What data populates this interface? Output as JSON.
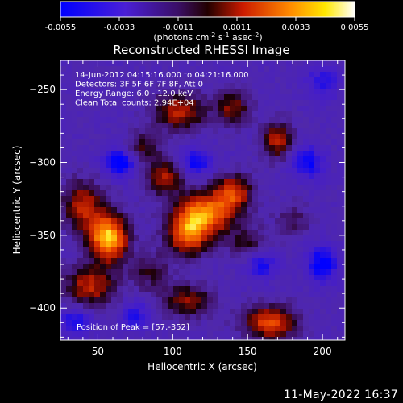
{
  "chart_data": {
    "type": "heatmap",
    "title": "Reconstructed RHESSI Image",
    "xlabel": "Heliocentric X (arcsec)",
    "ylabel": "Heliocentric Y (arcsec)",
    "xlim": [
      25,
      215
    ],
    "ylim": [
      -422,
      -230
    ],
    "xticks": [
      50,
      100,
      150,
      200
    ],
    "yticks": [
      -250,
      -300,
      -350,
      -400
    ],
    "colorbar": {
      "range": [
        -0.0055,
        0.0055
      ],
      "ticks": [
        "-0.0055",
        "-0.0033",
        "-0.0011",
        "0.0011",
        "0.0033",
        "0.0055"
      ],
      "unit_label_parts": [
        "(photons cm",
        "-2",
        " s",
        "-1",
        " asec",
        "-2",
        ")"
      ],
      "colormap": "blue-purple-red-orange-yellow-white"
    },
    "annotations": [
      "14-Jun-2012 04:15:16.000 to 04:21:16.000",
      "Detectors: 3F 5F 6F 7F 8F, Att 0",
      "Energy Range: 6.0 - 12.0 keV",
      "Clean     Total counts: 2.94E+04"
    ],
    "peak_label": "Position of Peak = [57,-352]",
    "peak": {
      "x": 57,
      "y": -352
    },
    "blobs": [
      {
        "x": 57,
        "y": -352,
        "amp": 1.0,
        "sx": 9,
        "sy": 11
      },
      {
        "x": 40,
        "y": -330,
        "amp": 0.55,
        "sx": 10,
        "sy": 12
      },
      {
        "x": 45,
        "y": -385,
        "amp": 0.55,
        "sx": 12,
        "sy": 10
      },
      {
        "x": 122,
        "y": -335,
        "amp": 0.8,
        "sx": 14,
        "sy": 10
      },
      {
        "x": 110,
        "y": -350,
        "amp": 0.7,
        "sx": 10,
        "sy": 10
      },
      {
        "x": 140,
        "y": -320,
        "amp": 0.6,
        "sx": 9,
        "sy": 8
      },
      {
        "x": 95,
        "y": -310,
        "amp": 0.5,
        "sx": 9,
        "sy": 9
      },
      {
        "x": 105,
        "y": -265,
        "amp": 0.55,
        "sx": 12,
        "sy": 9
      },
      {
        "x": 140,
        "y": -262,
        "amp": 0.45,
        "sx": 8,
        "sy": 8
      },
      {
        "x": 170,
        "y": -285,
        "amp": 0.55,
        "sx": 7,
        "sy": 9
      },
      {
        "x": 165,
        "y": -410,
        "amp": 0.7,
        "sx": 12,
        "sy": 8
      },
      {
        "x": 110,
        "y": -395,
        "amp": 0.45,
        "sx": 12,
        "sy": 8
      },
      {
        "x": 80,
        "y": -290,
        "amp": 0.35,
        "sx": 8,
        "sy": 8
      },
      {
        "x": 180,
        "y": -340,
        "amp": 0.25,
        "sx": 8,
        "sy": 8
      },
      {
        "x": 85,
        "y": -375,
        "amp": 0.3,
        "sx": 9,
        "sy": 9
      },
      {
        "x": 150,
        "y": -355,
        "amp": 0.3,
        "sx": 9,
        "sy": 8
      }
    ],
    "negatives": [
      {
        "x": 65,
        "y": -300,
        "amp": 0.55,
        "sx": 8,
        "sy": 7
      },
      {
        "x": 115,
        "y": -300,
        "amp": 0.45,
        "sx": 8,
        "sy": 7
      },
      {
        "x": 200,
        "y": -370,
        "amp": 0.55,
        "sx": 7,
        "sy": 9
      },
      {
        "x": 190,
        "y": -300,
        "amp": 0.45,
        "sx": 8,
        "sy": 8
      },
      {
        "x": 160,
        "y": -370,
        "amp": 0.4,
        "sx": 7,
        "sy": 7
      },
      {
        "x": 35,
        "y": -410,
        "amp": 0.4,
        "sx": 8,
        "sy": 7
      },
      {
        "x": 200,
        "y": -245,
        "amp": 0.35,
        "sx": 8,
        "sy": 8
      },
      {
        "x": 75,
        "y": -405,
        "amp": 0.35,
        "sx": 7,
        "sy": 7
      }
    ]
  },
  "footer": {
    "timestamp": "11-May-2022 16:37"
  }
}
